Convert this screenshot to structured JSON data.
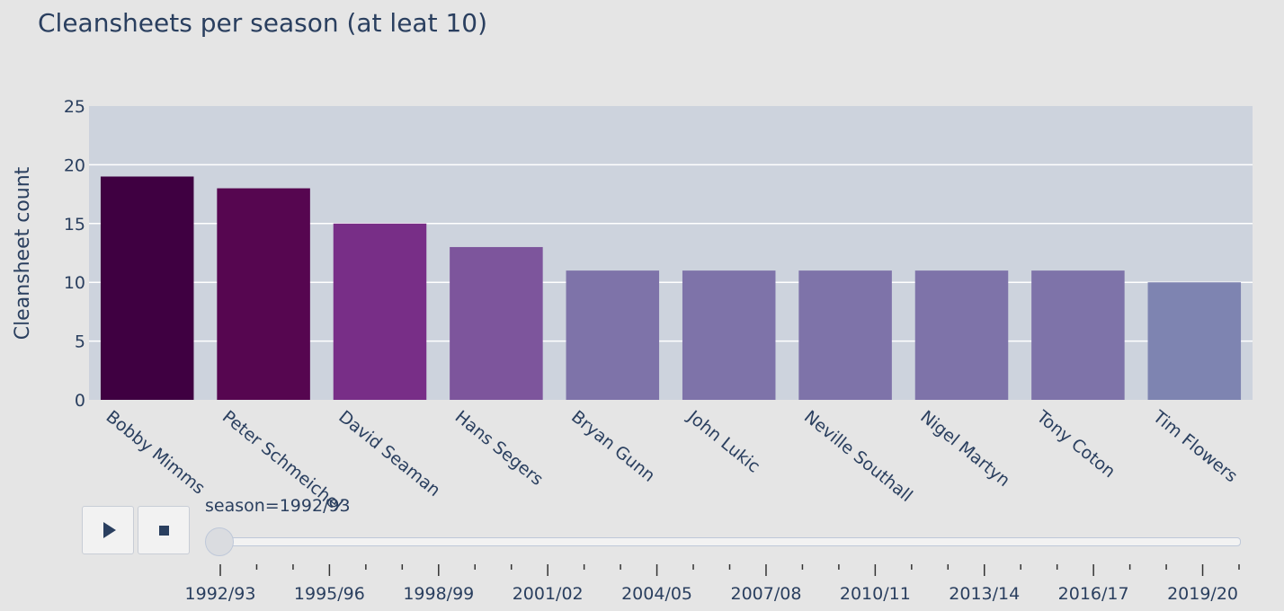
{
  "chart_data": {
    "type": "bar",
    "title": "Cleansheets per season (at leat 10)",
    "xlabel": "",
    "ylabel": "Cleansheet count",
    "categories": [
      "Bobby Mimms",
      "Peter Schmeichel",
      "David Seaman",
      "Hans Segers",
      "Bryan Gunn",
      "John Lukic",
      "Neville Southall",
      "Nigel Martyn",
      "Tony Coton",
      "Tim Flowers"
    ],
    "values": [
      19,
      18,
      15,
      13,
      11,
      11,
      11,
      11,
      11,
      10
    ],
    "colors": [
      "#3f0041",
      "#560650",
      "#782e87",
      "#7d559c",
      "#7e73a9",
      "#7e73a9",
      "#7e73a9",
      "#7e73a9",
      "#7e73a9",
      "#7e84b1"
    ],
    "ylim": [
      0,
      25
    ],
    "yticks": [
      0,
      5,
      10,
      15,
      20,
      25
    ],
    "grid": true,
    "legend": "none",
    "plot_bg": "#cdd3dd",
    "paper_bg": "#e5e5e5",
    "text_color": "#2a3f5f"
  },
  "slider": {
    "current_prefix": "season=",
    "current_value": "1992/93",
    "tick_labels": [
      "1992/93",
      "1995/96",
      "1998/99",
      "2001/02",
      "2004/05",
      "2007/08",
      "2010/11",
      "2013/14",
      "2016/17",
      "2019/20"
    ]
  },
  "controls": {
    "play_icon": "play-icon",
    "stop_icon": "stop-icon"
  }
}
